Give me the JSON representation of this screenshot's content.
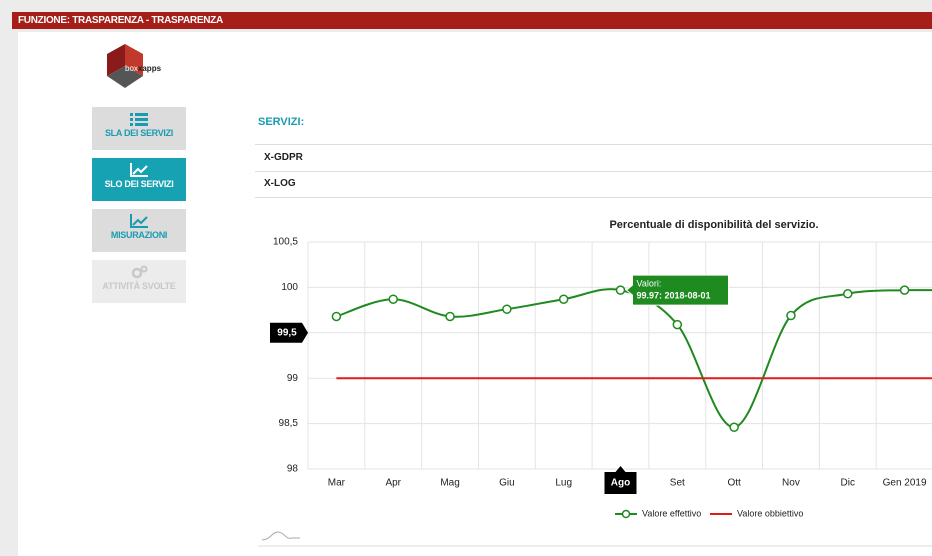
{
  "header": {
    "title": "FUNZIONE: TRASPARENZA - TRASPARENZA"
  },
  "logo": {
    "prefix": "box",
    "suffix": "xapps"
  },
  "menu": [
    {
      "label": "SLA DEI SERVIZI",
      "state": "default"
    },
    {
      "label": "SLO DEI SERVIZI",
      "state": "active"
    },
    {
      "label": "MISURAZIONI",
      "state": "default"
    },
    {
      "label": "ATTIVITÀ SVOLTE",
      "state": "disabled"
    }
  ],
  "services": {
    "title": "SERVIZI:",
    "items": [
      "X-GDPR",
      "X-LOG"
    ]
  },
  "chart_data": {
    "type": "line",
    "title": "Percentuale di disponibilità del servizio.",
    "categories": [
      "Mar",
      "Apr",
      "Mag",
      "Giu",
      "Lug",
      "Ago",
      "Set",
      "Ott",
      "Nov",
      "Dic",
      "Gen 2019"
    ],
    "series": [
      {
        "name": "Valore effettivo",
        "color": "#1f8a1f",
        "markers": true,
        "values": [
          99.68,
          99.87,
          99.68,
          99.76,
          99.87,
          99.97,
          99.59,
          98.46,
          99.69,
          99.93,
          99.97
        ]
      },
      {
        "name": "Valore obbiettivo",
        "color": "#e01b1b",
        "markers": false,
        "values": [
          99,
          99,
          99,
          99,
          99,
          99,
          99,
          99,
          99,
          99,
          99
        ]
      }
    ],
    "ylim": [
      98,
      100.5
    ],
    "yticks": [
      {
        "value": 100.5,
        "label": "100,5"
      },
      100,
      {
        "value": 99.5,
        "label": "99,5"
      },
      99,
      {
        "value": 98.5,
        "label": "98,5"
      },
      98
    ],
    "grid": true,
    "legend": "bottom",
    "highlighted_category": "Ago",
    "crosshair_y": {
      "value": 99.5,
      "label": "99,5"
    },
    "tooltip": {
      "title": "Valori:",
      "text": "99.97: 2018-08-01",
      "series": 0,
      "index": 5
    }
  }
}
